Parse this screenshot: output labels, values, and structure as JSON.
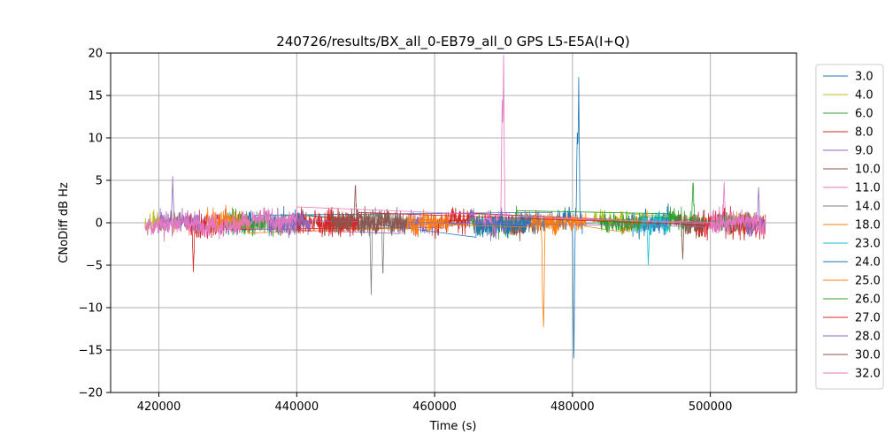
{
  "chart_data": {
    "type": "line",
    "title": "240726/results/BX_all_0-EB79_all_0 GPS L5-E5A(I+Q)",
    "xlabel": "Time (s)",
    "ylabel": "CNoDiff dB Hz",
    "xlim": [
      413000,
      512500
    ],
    "ylim": [
      -20,
      20
    ],
    "xticks": [
      420000,
      440000,
      460000,
      480000,
      500000
    ],
    "xtick_labels": [
      "420000",
      "440000",
      "460000",
      "480000",
      "500000"
    ],
    "yticks": [
      -20,
      -15,
      -10,
      -5,
      0,
      5,
      10,
      15,
      20
    ],
    "ytick_labels": [
      "−20",
      "−15",
      "−10",
      "−5",
      "0",
      "5",
      "10",
      "15",
      "20"
    ],
    "grid": true,
    "legend_position": "outside-right",
    "series": [
      {
        "name": "3.0",
        "color": "#1f77b4",
        "segments": [
          [
            477000,
            481500
          ],
          [
            488000,
            494000
          ],
          [
            429000,
            434000
          ]
        ],
        "noise": 0.9,
        "spikes": [
          [
            480200,
            -17.2
          ],
          [
            480900,
            17.4
          ],
          [
            480700,
            10.8
          ]
        ]
      },
      {
        "name": "4.0",
        "color": "#bcbd22",
        "segments": [
          [
            418000,
            423000
          ],
          [
            483000,
            488000
          ],
          [
            503000,
            508000
          ]
        ],
        "noise": 0.8,
        "spikes": []
      },
      {
        "name": "6.0",
        "color": "#2ca02c",
        "segments": [
          [
            430000,
            438000
          ],
          [
            465000,
            472000
          ],
          [
            494000,
            499000
          ]
        ],
        "noise": 1.0,
        "spikes": [
          [
            497500,
            5.2
          ]
        ]
      },
      {
        "name": "8.0",
        "color": "#d62728",
        "segments": [
          [
            424000,
            430000
          ],
          [
            460000,
            465000
          ],
          [
            498000,
            503000
          ]
        ],
        "noise": 1.1,
        "spikes": [
          [
            425000,
            -5.8
          ]
        ]
      },
      {
        "name": "9.0",
        "color": "#9467bd",
        "segments": [
          [
            420000,
            426000
          ],
          [
            455000,
            460000
          ],
          [
            465000,
            470000
          ]
        ],
        "noise": 1.0,
        "spikes": [
          [
            422000,
            5.5
          ]
        ]
      },
      {
        "name": "10.0",
        "color": "#8c564b",
        "segments": [
          [
            444000,
            450000
          ],
          [
            470000,
            476000
          ],
          [
            495000,
            499000
          ]
        ],
        "noise": 0.9,
        "spikes": [
          [
            496000,
            -4.3
          ]
        ]
      },
      {
        "name": "11.0",
        "color": "#e377c2",
        "segments": [
          [
            467000,
            471000
          ],
          [
            500000,
            506000
          ]
        ],
        "noise": 0.9,
        "spikes": [
          [
            470000,
            19.8
          ],
          [
            469800,
            14.5
          ],
          [
            502000,
            4.8
          ]
        ]
      },
      {
        "name": "14.0",
        "color": "#7f7f7f",
        "segments": [
          [
            449000,
            455000
          ],
          [
            470000,
            476000
          ]
        ],
        "noise": 0.9,
        "spikes": [
          [
            450800,
            -8.5
          ],
          [
            452500,
            -6.5
          ]
        ]
      },
      {
        "name": "18.0",
        "color": "#ff7f0e",
        "segments": [
          [
            476000,
            482000
          ],
          [
            487000,
            491000
          ]
        ],
        "noise": 0.7,
        "spikes": []
      },
      {
        "name": "23.0",
        "color": "#17becf",
        "segments": [
          [
            489000,
            494000
          ]
        ],
        "noise": 0.8,
        "spikes": [
          [
            491000,
            -5.0
          ]
        ]
      },
      {
        "name": "24.0",
        "color": "#1f77b4",
        "segments": [
          [
            466000,
            474000
          ],
          [
            436000,
            441000
          ]
        ],
        "noise": 0.9,
        "spikes": []
      },
      {
        "name": "25.0",
        "color": "#ff7f0e",
        "segments": [
          [
            427000,
            433000
          ],
          [
            456000,
            462000
          ],
          [
            474000,
            478000
          ]
        ],
        "noise": 0.9,
        "spikes": [
          [
            475800,
            -14.6
          ],
          [
            475700,
            -10.0
          ]
        ]
      },
      {
        "name": "26.0",
        "color": "#2ca02c",
        "segments": [
          [
            484000,
            490000
          ],
          [
            501000,
            506000
          ]
        ],
        "noise": 0.8,
        "spikes": []
      },
      {
        "name": "27.0",
        "color": "#d62728",
        "segments": [
          [
            440000,
            449000
          ],
          [
            503000,
            508000
          ]
        ],
        "noise": 1.0,
        "spikes": []
      },
      {
        "name": "28.0",
        "color": "#9467bd",
        "segments": [
          [
            436000,
            442000
          ],
          [
            505000,
            508000
          ]
        ],
        "noise": 0.9,
        "spikes": [
          [
            507000,
            4.2
          ]
        ]
      },
      {
        "name": "30.0",
        "color": "#8c564b",
        "segments": [
          [
            445000,
            456000
          ]
        ],
        "noise": 1.0,
        "spikes": [
          [
            448500,
            4.8
          ]
        ]
      },
      {
        "name": "32.0",
        "color": "#e377c2",
        "segments": [
          [
            418000,
            432000
          ],
          [
            432000,
            440000
          ],
          [
            500000,
            508000
          ]
        ],
        "noise": 0.9,
        "spikes": []
      }
    ]
  }
}
